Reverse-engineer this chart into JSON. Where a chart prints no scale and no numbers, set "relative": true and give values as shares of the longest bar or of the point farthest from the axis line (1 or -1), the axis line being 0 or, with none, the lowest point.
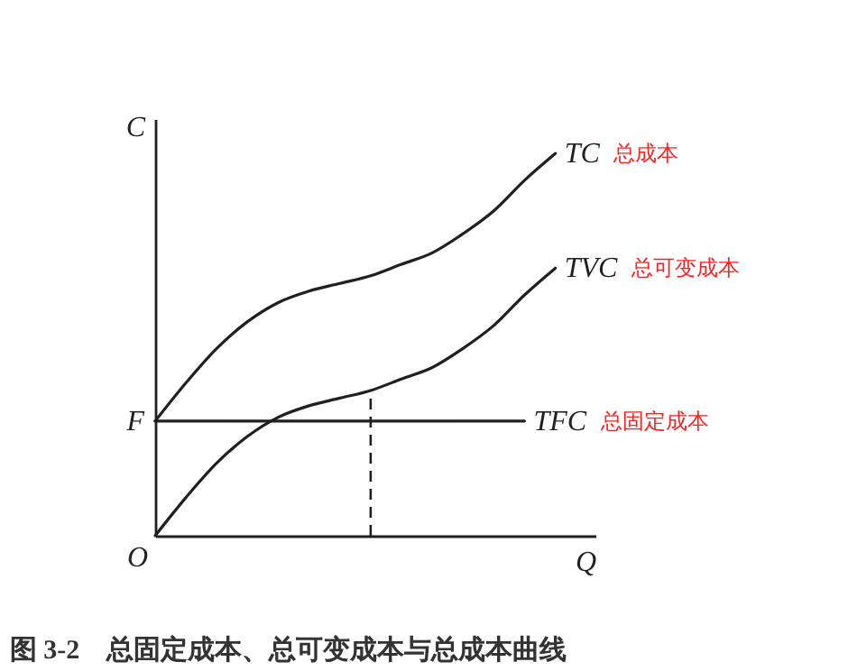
{
  "chart_data": {
    "type": "line",
    "relative": true,
    "title": "图 3-2　总固定成本、总可变成本与总成本曲线",
    "xlabel": "Q",
    "ylabel": "C",
    "categories": [
      null,
      null,
      null,
      null,
      null,
      null,
      null,
      null,
      null,
      null,
      null,
      null,
      null,
      null
    ],
    "series": [
      {
        "name": "TC",
        "color": "#231f20",
        "values": [
          0.3,
          0.4,
          0.49,
          0.56,
          0.61,
          0.64,
          0.66,
          0.68,
          0.71,
          0.74,
          0.79,
          0.85,
          0.93,
          1
        ]
      },
      {
        "name": "TVC",
        "color": "#231f20",
        "values": [
          0,
          0.1,
          0.19,
          0.26,
          0.31,
          0.34,
          0.36,
          0.38,
          0.41,
          0.44,
          0.49,
          0.55,
          0.63,
          0.7
        ]
      },
      {
        "name": "TFC",
        "color": "#231f20",
        "values": [
          0.3,
          0.3,
          0.3,
          0.3,
          0.3,
          0.3,
          0.3,
          0.3,
          0.3,
          0.3,
          0.3,
          0.3,
          0.3,
          null
        ]
      }
    ],
    "annotations": [
      "总成本",
      "总可变成本",
      "总固定成本",
      "F",
      "O"
    ],
    "grid": false,
    "marker": "none",
    "line_style": "solid"
  }
}
